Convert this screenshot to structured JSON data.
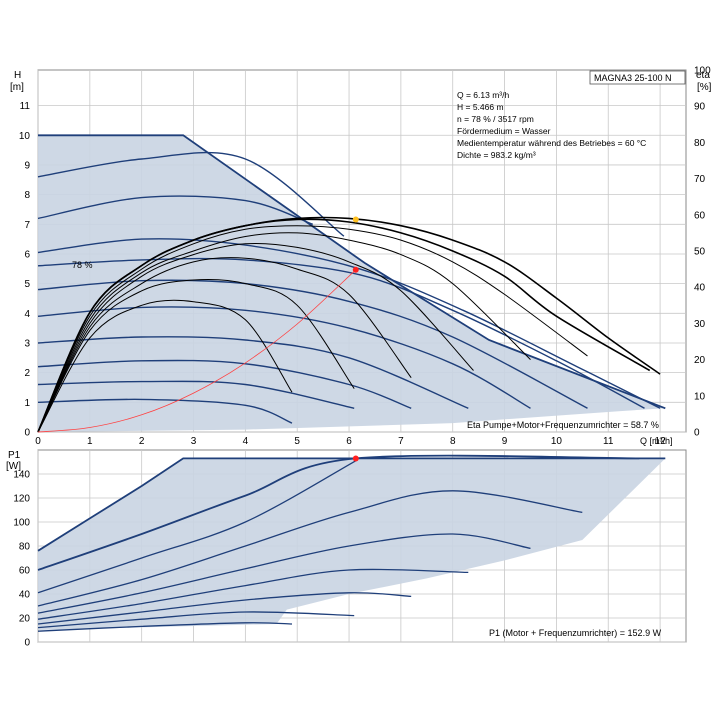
{
  "chart_data": [
    {
      "type": "line",
      "title": "MAGNA3 25-100 N",
      "ylabel": "H",
      "ylabel_unit": "[m]",
      "y2label": "eta",
      "y2label_unit": "[%]",
      "xlabel": "Q [m³/h]",
      "xlim": [
        0,
        12.5
      ],
      "ylim": [
        0,
        12.2
      ],
      "y2lim": [
        0,
        100
      ],
      "x_ticks": [
        "0",
        "1",
        "2",
        "3",
        "4",
        "5",
        "6",
        "7",
        "8",
        "9",
        "10",
        "11",
        "12"
      ],
      "y_ticks": [
        "0",
        "1",
        "2",
        "3",
        "4",
        "5",
        "6",
        "7",
        "8",
        "9",
        "10",
        "11"
      ],
      "y2_ticks": [
        "0",
        "10",
        "20",
        "30",
        "40",
        "50",
        "60",
        "70",
        "80",
        "90",
        "100"
      ],
      "grid": true,
      "info_lines": [
        "Q = 6.13 m³/h",
        "H = 5.466 m",
        "n = 78 % / 3517 rpm",
        "Fördermedium = Wasser",
        "Medientemperatur während des Betriebes = 60 °C",
        "Dichte = 983.2 kg/m³"
      ],
      "curve_label": "78 %",
      "efficiency_label": "Eta Pumpe+Motor+Frequenzumrichter = 58.7 %",
      "operating_region": [
        [
          0,
          0
        ],
        [
          0,
          10
        ],
        [
          2.8,
          10
        ],
        [
          6.3,
          5.7
        ],
        [
          8.7,
          3.1
        ],
        [
          12.1,
          0.8
        ],
        [
          11.2,
          0.7
        ],
        [
          8,
          0.3
        ],
        [
          4,
          0.08
        ],
        [
          0,
          0
        ]
      ],
      "pump_curves": [
        {
          "name": "max",
          "x": [
            0,
            1,
            2,
            2.8,
            6.3,
            8.7,
            12.1
          ],
          "y": [
            10,
            10,
            10,
            10,
            5.7,
            3.1,
            0.8
          ]
        },
        {
          "x": [
            0,
            2,
            4,
            5.9
          ],
          "y": [
            8.6,
            9.2,
            9.2,
            6.6
          ]
        },
        {
          "x": [
            0,
            2,
            4,
            5.3
          ],
          "y": [
            7.2,
            7.9,
            7.8,
            7.0
          ]
        },
        {
          "x": [
            0,
            2,
            4,
            6.2,
            8.2,
            10.4,
            12.0
          ],
          "y": [
            6.05,
            6.5,
            6.3,
            5.5,
            4.1,
            2.2,
            0.8
          ]
        },
        {
          "x": [
            0,
            2,
            4,
            6.2,
            8.0,
            10.0,
            11.7
          ],
          "y": [
            5.6,
            5.8,
            5.8,
            5.3,
            4.1,
            2.4,
            0.8
          ]
        },
        {
          "x": [
            0,
            2,
            4,
            6,
            8,
            10.6
          ],
          "y": [
            4.8,
            5.1,
            5.0,
            4.4,
            3.2,
            0.8
          ]
        },
        {
          "x": [
            0,
            2,
            4,
            6,
            8,
            9.5
          ],
          "y": [
            3.9,
            4.2,
            4.1,
            3.5,
            2.3,
            0.8
          ]
        },
        {
          "x": [
            0,
            2,
            4,
            6,
            8.3
          ],
          "y": [
            3.0,
            3.2,
            3.1,
            2.5,
            0.8
          ]
        },
        {
          "x": [
            0,
            2,
            4,
            6,
            7.2
          ],
          "y": [
            2.2,
            2.4,
            2.3,
            1.6,
            0.8
          ]
        },
        {
          "x": [
            0,
            2,
            4,
            6.1
          ],
          "y": [
            1.6,
            1.7,
            1.6,
            0.8
          ]
        },
        {
          "x": [
            0,
            2,
            4,
            4.9
          ],
          "y": [
            1.0,
            1.1,
            0.9,
            0.3
          ]
        }
      ],
      "efficiency_curves": [
        {
          "x": [
            0,
            1,
            2,
            3,
            4,
            5,
            6,
            7,
            8,
            9,
            10,
            11,
            12
          ],
          "y": [
            0,
            33,
            46,
            53,
            57,
            59,
            59,
            57,
            53,
            47,
            37,
            26,
            16
          ]
        },
        {
          "x": [
            0,
            1,
            2,
            3,
            4,
            5,
            6,
            7,
            8,
            9,
            10,
            11.8
          ],
          "y": [
            0,
            33,
            46,
            53,
            57,
            58.7,
            58,
            55,
            50,
            43,
            32,
            17
          ]
        },
        {
          "x": [
            0,
            1,
            2,
            3,
            4,
            5,
            6,
            7,
            8,
            9,
            10.6
          ],
          "y": [
            0,
            32,
            45,
            52,
            56,
            57,
            56,
            53,
            47,
            38,
            21
          ]
        },
        {
          "x": [
            0,
            1,
            2,
            3,
            4,
            5,
            6,
            7,
            8,
            9.5
          ],
          "y": [
            0,
            31,
            44,
            50,
            54,
            55,
            53,
            49,
            41,
            20
          ]
        },
        {
          "x": [
            0,
            1,
            2,
            3,
            4,
            5,
            6,
            7,
            8.4
          ],
          "y": [
            0,
            30,
            43,
            49,
            52,
            51,
            47,
            39,
            17
          ]
        },
        {
          "x": [
            0,
            1,
            2,
            3,
            4,
            5,
            6,
            7.2
          ],
          "y": [
            0,
            29,
            41,
            47,
            48,
            45,
            38,
            15
          ]
        },
        {
          "x": [
            0,
            1,
            2,
            3,
            4,
            5,
            6.1
          ],
          "y": [
            0,
            28,
            39,
            42,
            41,
            35,
            12
          ]
        },
        {
          "x": [
            0,
            1,
            2,
            3,
            4,
            4.9
          ],
          "y": [
            0,
            26,
            35,
            36,
            31,
            11
          ]
        }
      ],
      "system_curve": {
        "x": [
          0,
          1,
          2,
          3,
          4,
          5,
          6.13
        ],
        "y": [
          0,
          0.15,
          0.58,
          1.31,
          2.33,
          3.64,
          5.466
        ]
      },
      "operating_point": {
        "x": 6.13,
        "y": 5.466,
        "color": "#ff2020"
      },
      "efficiency_point": {
        "x": 6.13,
        "y2": 58.7,
        "color": "#ffc020"
      }
    },
    {
      "type": "line",
      "ylabel": "P1",
      "ylabel_unit": "[W]",
      "xlim": [
        0,
        12.5
      ],
      "ylim": [
        0,
        160
      ],
      "y_ticks": [
        "0",
        "20",
        "40",
        "60",
        "80",
        "100",
        "120",
        "140"
      ],
      "power_label": "P1 (Motor + Frequenzumrichter) = 152.9 W",
      "operating_region": [
        [
          0,
          76
        ],
        [
          2.8,
          153
        ],
        [
          12.1,
          153
        ],
        [
          10.5,
          85
        ],
        [
          9.0,
          68
        ],
        [
          7.5,
          53
        ],
        [
          6.0,
          40
        ],
        [
          4.8,
          27
        ],
        [
          4.6,
          15
        ],
        [
          0,
          10
        ]
      ],
      "power_curves": [
        {
          "x": [
            0,
            1,
            2,
            2.8,
            12.1
          ],
          "y": [
            76,
            103,
            130,
            153,
            153
          ]
        },
        {
          "x": [
            0,
            2,
            4,
            6.13,
            11.6
          ],
          "y": [
            60,
            90,
            122,
            153,
            153
          ]
        },
        {
          "x": [
            0,
            2,
            4,
            6.13
          ],
          "y": [
            41,
            70,
            100,
            151
          ]
        },
        {
          "x": [
            0,
            2,
            4,
            6,
            8,
            10.5
          ],
          "y": [
            30,
            52,
            80,
            108,
            126,
            108
          ]
        },
        {
          "x": [
            0,
            2,
            4,
            6,
            8,
            9.5
          ],
          "y": [
            24,
            41,
            61,
            80,
            90,
            78
          ]
        },
        {
          "x": [
            0,
            2,
            4,
            6,
            8.3
          ],
          "y": [
            19,
            32,
            47,
            60,
            58
          ]
        },
        {
          "x": [
            0,
            2,
            4,
            6,
            7.2
          ],
          "y": [
            15,
            25,
            35,
            41,
            38
          ]
        },
        {
          "x": [
            0,
            2,
            4,
            6.1
          ],
          "y": [
            12,
            19,
            25,
            22
          ]
        },
        {
          "x": [
            0,
            2,
            4,
            4.9
          ],
          "y": [
            9,
            13,
            16,
            15
          ]
        }
      ],
      "operating_point": {
        "x": 6.13,
        "y": 152.9,
        "color": "#ff2020"
      }
    }
  ]
}
